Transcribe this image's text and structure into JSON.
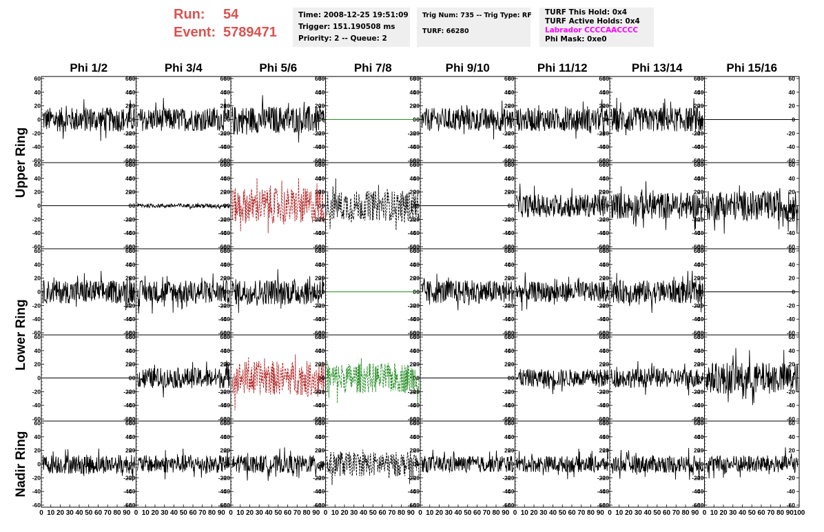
{
  "header": {
    "run_label": "Run:",
    "run_value": "54",
    "event_label": "Event:",
    "event_value": "5789471"
  },
  "info_boxes": {
    "time": "Time: 2008-12-25 19:51:09",
    "trigger": "Trigger: 151.190508 ms",
    "priority": "Priority: 2 -- Queue: 2",
    "trig_num": "Trig Num: 735 -- Trig Type: RF",
    "turf": "TURF: 66280",
    "turf_hold": "TURF This Hold: 0x4",
    "turf_active": "TURF Active Holds: 0x4",
    "labrador": "Labrador CCCCAACCCC",
    "phi_mask": "Phi Mask: 0xe0"
  },
  "colors": {
    "header_red": "#d9534f",
    "magenta": "#ff00ff",
    "box_bg": "#efefef",
    "trace_black": "#000000",
    "trace_red": "#b22222",
    "trace_green": "#228b22"
  },
  "chart_data": {
    "type": "line",
    "columns": [
      "Phi 1/2",
      "Phi 3/4",
      "Phi 5/6",
      "Phi 7/8",
      "Phi 9/10",
      "Phi 11/12",
      "Phi 13/14",
      "Phi 15/16"
    ],
    "row_groups": [
      {
        "label": "Upper Ring",
        "rows": [
          0,
          1
        ]
      },
      {
        "label": "Lower Ring",
        "rows": [
          2,
          3
        ]
      },
      {
        "label": "Nadir Ring",
        "rows": [
          4
        ]
      }
    ],
    "ylim": [
      -60,
      60
    ],
    "yticks": [
      -60,
      -40,
      -20,
      0,
      20,
      40,
      60
    ],
    "xlim": [
      0,
      100
    ],
    "xticks": [
      0,
      10,
      20,
      30,
      40,
      50,
      60,
      70,
      80,
      90,
      100
    ],
    "panels": [
      [
        {
          "style": "noise",
          "amp": 18,
          "color": "black"
        },
        {
          "style": "noise",
          "amp": 17,
          "color": "black"
        },
        {
          "style": "noise",
          "amp": 20,
          "color": "black"
        },
        {
          "style": "flat",
          "amp": 0,
          "color": "green"
        },
        {
          "style": "noise",
          "amp": 17,
          "color": "black"
        },
        {
          "style": "noise",
          "amp": 17,
          "color": "black"
        },
        {
          "style": "noise",
          "amp": 18,
          "color": "black"
        },
        {
          "style": "flat",
          "amp": 0,
          "color": "black"
        }
      ],
      [
        {
          "style": "flat",
          "amp": 0,
          "color": "black"
        },
        {
          "style": "noise",
          "amp": 3,
          "color": "black"
        },
        {
          "style": "dashed",
          "amp": 26,
          "color": "red"
        },
        {
          "style": "dashed",
          "amp": 22,
          "color": "black"
        },
        {
          "style": "flat",
          "amp": 0,
          "color": "black"
        },
        {
          "style": "noise",
          "amp": 17,
          "color": "black"
        },
        {
          "style": "noise",
          "amp": 20,
          "color": "black"
        },
        {
          "style": "noise",
          "amp": 22,
          "color": "black"
        }
      ],
      [
        {
          "style": "noise",
          "amp": 17,
          "color": "black"
        },
        {
          "style": "noise",
          "amp": 17,
          "color": "black"
        },
        {
          "style": "noise",
          "amp": 19,
          "color": "black"
        },
        {
          "style": "flat",
          "amp": 0,
          "color": "green"
        },
        {
          "style": "noise",
          "amp": 17,
          "color": "black"
        },
        {
          "style": "noise",
          "amp": 15,
          "color": "black"
        },
        {
          "style": "noise",
          "amp": 17,
          "color": "black"
        },
        {
          "style": "flat",
          "amp": 0,
          "color": "black"
        }
      ],
      [
        {
          "style": "flat",
          "amp": 0,
          "color": "black"
        },
        {
          "style": "noise",
          "amp": 15,
          "color": "black"
        },
        {
          "style": "dashed",
          "amp": 25,
          "color": "red"
        },
        {
          "style": "dashed",
          "amp": 22,
          "color": "green"
        },
        {
          "style": "flat",
          "amp": 0,
          "color": "black"
        },
        {
          "style": "noise",
          "amp": 13,
          "color": "black"
        },
        {
          "style": "noise",
          "amp": 14,
          "color": "black"
        },
        {
          "style": "noise",
          "amp": 23,
          "color": "black"
        }
      ],
      [
        {
          "style": "noise",
          "amp": 14,
          "color": "black"
        },
        {
          "style": "noise",
          "amp": 13,
          "color": "black"
        },
        {
          "style": "noise",
          "amp": 13,
          "color": "black"
        },
        {
          "style": "dashed",
          "amp": 18,
          "color": "black"
        },
        {
          "style": "noise",
          "amp": 12,
          "color": "black"
        },
        {
          "style": "noise",
          "amp": 12,
          "color": "black"
        },
        {
          "style": "noise",
          "amp": 13,
          "color": "black"
        },
        {
          "style": "noise",
          "amp": 13,
          "color": "black"
        }
      ]
    ]
  }
}
